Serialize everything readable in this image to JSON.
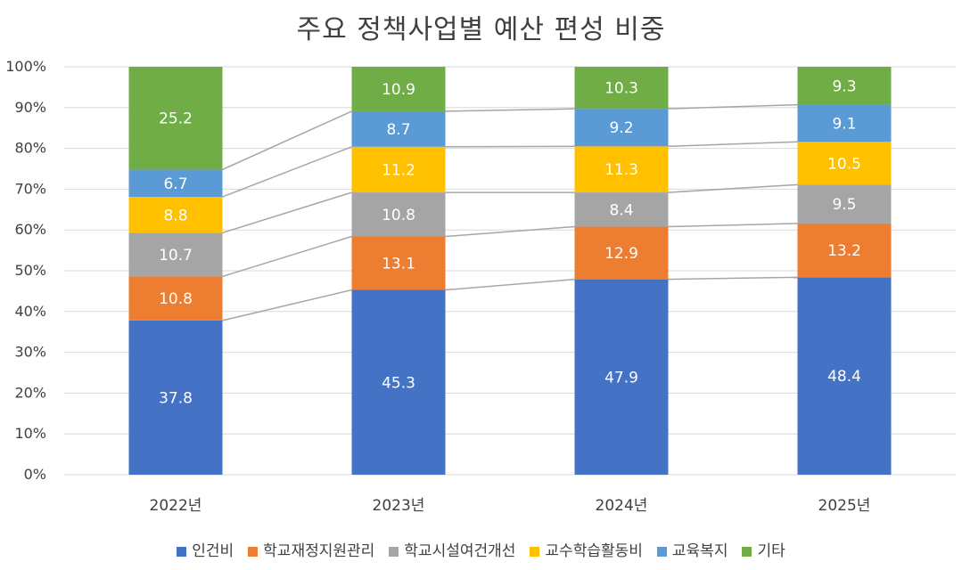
{
  "chart_data": {
    "type": "bar",
    "stacked": "percent",
    "title": "주요 정책사업별 예산 편성 비중",
    "categories": [
      "2022년",
      "2023년",
      "2024년",
      "2025년"
    ],
    "series": [
      {
        "name": "인건비",
        "color": "#4472C4",
        "values": [
          37.8,
          45.3,
          47.9,
          48.4
        ]
      },
      {
        "name": "학교재정지원관리",
        "color": "#ED7D31",
        "values": [
          10.8,
          13.1,
          12.9,
          13.2
        ]
      },
      {
        "name": "학교시설여건개선",
        "color": "#A5A5A5",
        "values": [
          10.7,
          10.8,
          8.4,
          9.5
        ]
      },
      {
        "name": "교수학습활동비",
        "color": "#FFC000",
        "values": [
          8.8,
          11.2,
          11.3,
          10.5
        ]
      },
      {
        "name": "교육복지",
        "color": "#5B9BD5",
        "values": [
          6.7,
          8.7,
          9.2,
          9.1
        ]
      },
      {
        "name": "기타",
        "color": "#70AD47",
        "values": [
          25.2,
          10.9,
          10.3,
          9.3
        ]
      }
    ],
    "ylim": [
      0,
      100
    ],
    "yticks": [
      "0%",
      "10%",
      "20%",
      "30%",
      "40%",
      "50%",
      "60%",
      "70%",
      "80%",
      "90%",
      "100%"
    ],
    "series_lines": true,
    "grid": true,
    "legend_position": "bottom"
  }
}
